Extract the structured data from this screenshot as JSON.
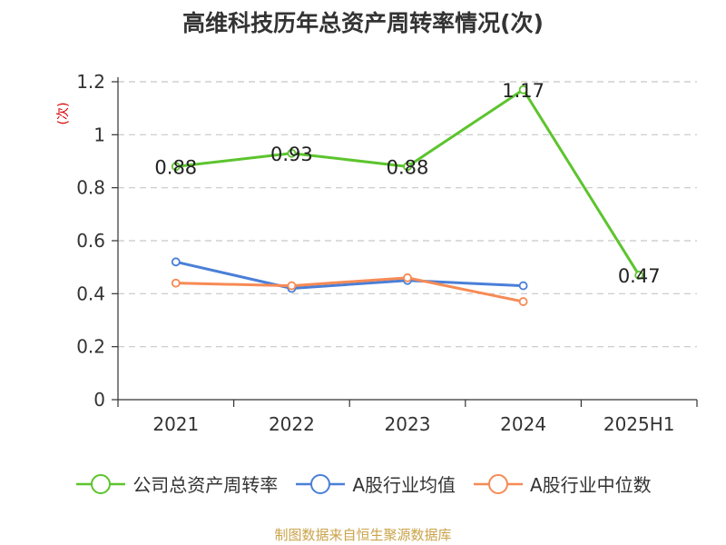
{
  "chart_data": {
    "type": "line",
    "title": "高维科技历年总资产周转率情况(次)",
    "ylabel": "(次)",
    "ylim": [
      0,
      1.2
    ],
    "yticks": [
      0,
      0.2,
      0.4,
      0.6,
      0.8,
      1,
      1.2
    ],
    "ytick_labels": [
      "0",
      "0.2",
      "0.4",
      "0.6",
      "0.8",
      "1",
      "1.2"
    ],
    "categories": [
      "2021",
      "2022",
      "2023",
      "2024",
      "2025H1"
    ],
    "grid": true,
    "legend_position": "bottom",
    "series": [
      {
        "name": "公司总资产周转率",
        "color": "#5cc42e",
        "values": [
          0.88,
          0.93,
          0.88,
          1.17,
          0.47
        ],
        "show_labels": true
      },
      {
        "name": "A股行业均值",
        "color": "#4a7fd8",
        "values": [
          0.52,
          0.42,
          0.45,
          0.43,
          null
        ],
        "show_labels": false
      },
      {
        "name": "A股行业中位数",
        "color": "#f78a55",
        "values": [
          0.44,
          0.43,
          0.46,
          0.37,
          null
        ],
        "show_labels": false
      }
    ]
  },
  "source_text": "制图数据来自恒生聚源数据库"
}
